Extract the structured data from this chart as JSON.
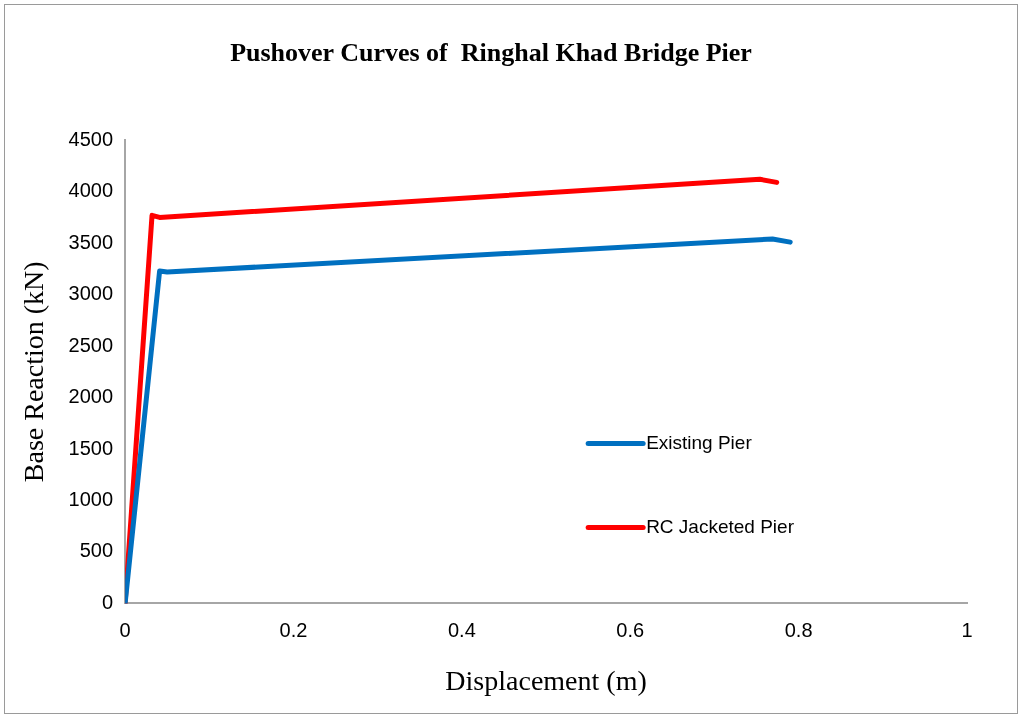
{
  "chart_data": {
    "type": "line",
    "title": "Pushover Curves of  Ringhal Khad Bridge Pier",
    "xlabel": "Displacement (m)",
    "ylabel": "Base Reaction (kN)",
    "series": [
      {
        "name": "Existing Pier",
        "color": "#0070c0",
        "x": [
          0,
          0.041,
          0.05,
          0.769,
          0.79
        ],
        "values": [
          0,
          3230,
          3220,
          3540,
          3510
        ]
      },
      {
        "name": "RC Jacketed Pier",
        "color": "#ff0000",
        "x": [
          0,
          0.032,
          0.041,
          0.754,
          0.774
        ],
        "values": [
          0,
          3770,
          3750,
          4120,
          4090
        ]
      }
    ],
    "xlim": [
      0,
      1
    ],
    "xticks": [
      0,
      0.2,
      0.4,
      0.6,
      0.8,
      1
    ],
    "ylim": [
      0,
      4500
    ],
    "yticks": [
      0,
      500,
      1000,
      1500,
      2000,
      2500,
      3000,
      3500,
      4000,
      4500
    ],
    "grid": false,
    "legend": "right",
    "marker": "none",
    "line_style": "solid"
  }
}
